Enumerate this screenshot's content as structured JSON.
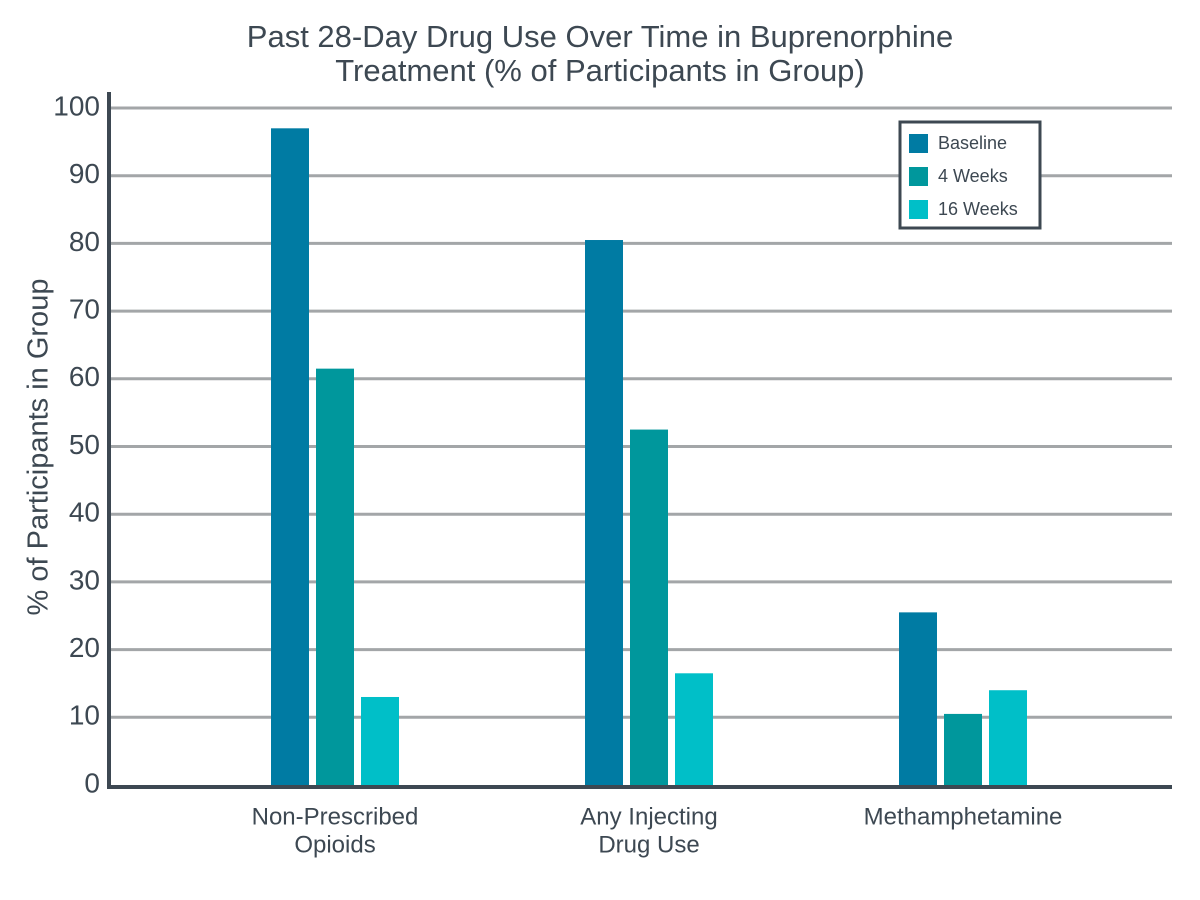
{
  "chart_data": {
    "type": "bar",
    "title_lines": [
      "Past 28-Day Drug Use Over Time in Buprenorphine",
      "Treatment (% of Participants in Group)"
    ],
    "xlabel": "",
    "ylabel": "% of Participants in Group",
    "ylim": [
      0,
      100
    ],
    "yticks": [
      0,
      10,
      20,
      30,
      40,
      50,
      60,
      70,
      80,
      90,
      100
    ],
    "grid": true,
    "legend_position": "top-right",
    "categories": [
      [
        "Non-Prescribed",
        "Opioids"
      ],
      [
        "Any Injecting",
        "Drug Use"
      ],
      [
        "Methamphetamine"
      ]
    ],
    "series": [
      {
        "name": "Baseline",
        "color": "#007ba3",
        "values": [
          97,
          80.5,
          25.5
        ]
      },
      {
        "name": "4 Weeks",
        "color": "#00979c",
        "values": [
          61.5,
          52.5,
          10.5
        ]
      },
      {
        "name": "16 Weeks",
        "color": "#00bfc8",
        "values": [
          13,
          16.5,
          14
        ]
      }
    ]
  }
}
